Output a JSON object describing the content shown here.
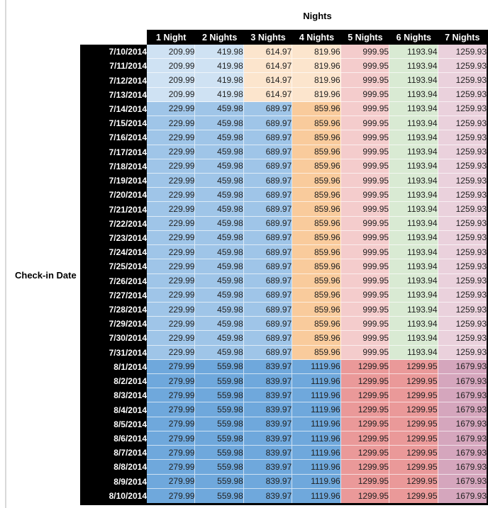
{
  "styles": {
    "header_bg": "#000000",
    "header_fg": "#ffffff",
    "value_fg": "#1f1f1f",
    "edge_rule": "#d9d9d9"
  },
  "chart_data": {
    "type": "table",
    "title": "Nights",
    "row_axis_label": "Check-in Date",
    "columns": [
      "1 Night",
      "2 Nights",
      "3 Nights",
      "4 Nights",
      "5 Nights",
      "6 Nights",
      "7 Nights"
    ],
    "band_colors": {
      "early_july": [
        "#cfe2f3",
        "#cfe2f3",
        "#fce5cd",
        "#fce5cd",
        "#f4cccc",
        "#d9ead3",
        "#ead1dc"
      ],
      "mid_july": [
        "#9fc5e8",
        "#9fc5e8",
        "#9fc5e8",
        "#f9cb9c",
        "#f4cccc",
        "#d9ead3",
        "#ead1dc"
      ],
      "august": [
        "#6fa8dc",
        "#6fa8dc",
        "#6fa8dc",
        "#6fa8dc",
        "#ea9999",
        "#ea9999",
        "#d5a6bd"
      ]
    },
    "rows": [
      {
        "date": "7/10/2014",
        "band": "early_july",
        "values": [
          209.99,
          419.98,
          614.97,
          819.96,
          999.95,
          1193.94,
          1259.93
        ]
      },
      {
        "date": "7/11/2014",
        "band": "early_july",
        "values": [
          209.99,
          419.98,
          614.97,
          819.96,
          999.95,
          1193.94,
          1259.93
        ]
      },
      {
        "date": "7/12/2014",
        "band": "early_july",
        "values": [
          209.99,
          419.98,
          614.97,
          819.96,
          999.95,
          1193.94,
          1259.93
        ]
      },
      {
        "date": "7/13/2014",
        "band": "early_july",
        "values": [
          209.99,
          419.98,
          614.97,
          819.96,
          999.95,
          1193.94,
          1259.93
        ]
      },
      {
        "date": "7/14/2014",
        "band": "mid_july",
        "values": [
          229.99,
          459.98,
          689.97,
          859.96,
          999.95,
          1193.94,
          1259.93
        ]
      },
      {
        "date": "7/15/2014",
        "band": "mid_july",
        "values": [
          229.99,
          459.98,
          689.97,
          859.96,
          999.95,
          1193.94,
          1259.93
        ]
      },
      {
        "date": "7/16/2014",
        "band": "mid_july",
        "values": [
          229.99,
          459.98,
          689.97,
          859.96,
          999.95,
          1193.94,
          1259.93
        ]
      },
      {
        "date": "7/17/2014",
        "band": "mid_july",
        "values": [
          229.99,
          459.98,
          689.97,
          859.96,
          999.95,
          1193.94,
          1259.93
        ]
      },
      {
        "date": "7/18/2014",
        "band": "mid_july",
        "values": [
          229.99,
          459.98,
          689.97,
          859.96,
          999.95,
          1193.94,
          1259.93
        ]
      },
      {
        "date": "7/19/2014",
        "band": "mid_july",
        "values": [
          229.99,
          459.98,
          689.97,
          859.96,
          999.95,
          1193.94,
          1259.93
        ]
      },
      {
        "date": "7/20/2014",
        "band": "mid_july",
        "values": [
          229.99,
          459.98,
          689.97,
          859.96,
          999.95,
          1193.94,
          1259.93
        ]
      },
      {
        "date": "7/21/2014",
        "band": "mid_july",
        "values": [
          229.99,
          459.98,
          689.97,
          859.96,
          999.95,
          1193.94,
          1259.93
        ]
      },
      {
        "date": "7/22/2014",
        "band": "mid_july",
        "values": [
          229.99,
          459.98,
          689.97,
          859.96,
          999.95,
          1193.94,
          1259.93
        ]
      },
      {
        "date": "7/23/2014",
        "band": "mid_july",
        "values": [
          229.99,
          459.98,
          689.97,
          859.96,
          999.95,
          1193.94,
          1259.93
        ]
      },
      {
        "date": "7/24/2014",
        "band": "mid_july",
        "values": [
          229.99,
          459.98,
          689.97,
          859.96,
          999.95,
          1193.94,
          1259.93
        ]
      },
      {
        "date": "7/25/2014",
        "band": "mid_july",
        "values": [
          229.99,
          459.98,
          689.97,
          859.96,
          999.95,
          1193.94,
          1259.93
        ]
      },
      {
        "date": "7/26/2014",
        "band": "mid_july",
        "values": [
          229.99,
          459.98,
          689.97,
          859.96,
          999.95,
          1193.94,
          1259.93
        ]
      },
      {
        "date": "7/27/2014",
        "band": "mid_july",
        "values": [
          229.99,
          459.98,
          689.97,
          859.96,
          999.95,
          1193.94,
          1259.93
        ]
      },
      {
        "date": "7/28/2014",
        "band": "mid_july",
        "values": [
          229.99,
          459.98,
          689.97,
          859.96,
          999.95,
          1193.94,
          1259.93
        ]
      },
      {
        "date": "7/29/2014",
        "band": "mid_july",
        "values": [
          229.99,
          459.98,
          689.97,
          859.96,
          999.95,
          1193.94,
          1259.93
        ]
      },
      {
        "date": "7/30/2014",
        "band": "mid_july",
        "values": [
          229.99,
          459.98,
          689.97,
          859.96,
          999.95,
          1193.94,
          1259.93
        ]
      },
      {
        "date": "7/31/2014",
        "band": "mid_july",
        "values": [
          229.99,
          459.98,
          689.97,
          859.96,
          999.95,
          1193.94,
          1259.93
        ]
      },
      {
        "date": "8/1/2014",
        "band": "august",
        "values": [
          279.99,
          559.98,
          839.97,
          1119.96,
          1299.95,
          1299.95,
          1679.93
        ]
      },
      {
        "date": "8/2/2014",
        "band": "august",
        "values": [
          279.99,
          559.98,
          839.97,
          1119.96,
          1299.95,
          1299.95,
          1679.93
        ]
      },
      {
        "date": "8/3/2014",
        "band": "august",
        "values": [
          279.99,
          559.98,
          839.97,
          1119.96,
          1299.95,
          1299.95,
          1679.93
        ]
      },
      {
        "date": "8/4/2014",
        "band": "august",
        "values": [
          279.99,
          559.98,
          839.97,
          1119.96,
          1299.95,
          1299.95,
          1679.93
        ]
      },
      {
        "date": "8/5/2014",
        "band": "august",
        "values": [
          279.99,
          559.98,
          839.97,
          1119.96,
          1299.95,
          1299.95,
          1679.93
        ]
      },
      {
        "date": "8/6/2014",
        "band": "august",
        "values": [
          279.99,
          559.98,
          839.97,
          1119.96,
          1299.95,
          1299.95,
          1679.93
        ]
      },
      {
        "date": "8/7/2014",
        "band": "august",
        "values": [
          279.99,
          559.98,
          839.97,
          1119.96,
          1299.95,
          1299.95,
          1679.93
        ]
      },
      {
        "date": "8/8/2014",
        "band": "august",
        "values": [
          279.99,
          559.98,
          839.97,
          1119.96,
          1299.95,
          1299.95,
          1679.93
        ]
      },
      {
        "date": "8/9/2014",
        "band": "august",
        "values": [
          279.99,
          559.98,
          839.97,
          1119.96,
          1299.95,
          1299.95,
          1679.93
        ]
      },
      {
        "date": "8/10/2014",
        "band": "august",
        "values": [
          279.99,
          559.98,
          839.97,
          1119.96,
          1299.95,
          1299.95,
          1679.93
        ]
      }
    ]
  }
}
